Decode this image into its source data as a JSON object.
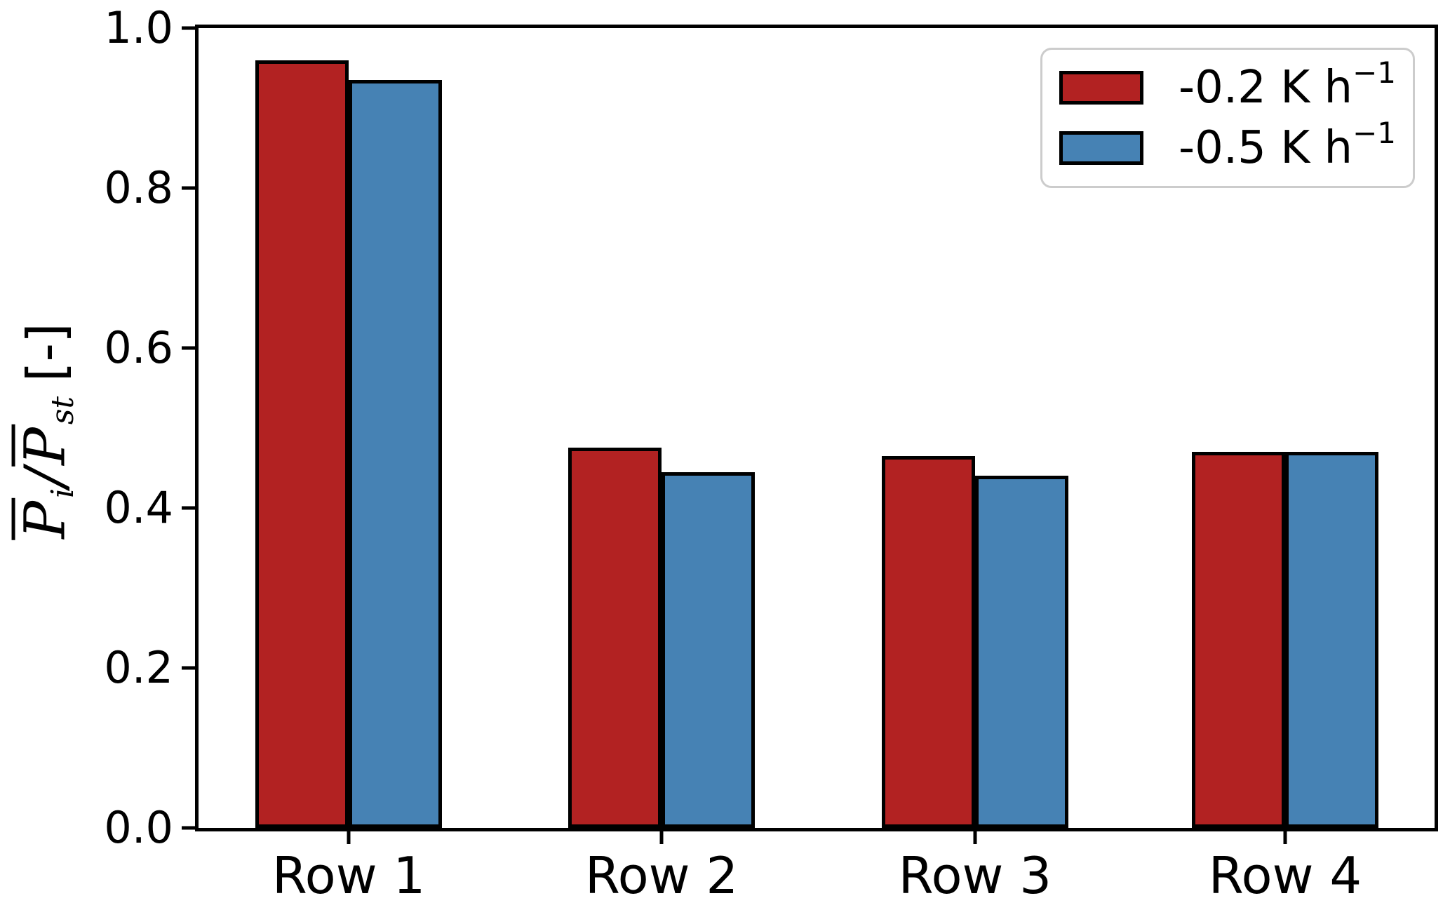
{
  "figure": {
    "background": "#ffffff"
  },
  "y_axis": {
    "label_p1": "P",
    "label_sub1": "i",
    "label_slash": "/",
    "label_p2": "P",
    "label_sub2": "st",
    "label_units": "[-]",
    "label_text": "P̄i/P̄st [-]",
    "tick_labels": [
      "0.0",
      "0.2",
      "0.4",
      "0.6",
      "0.8",
      "1.0"
    ]
  },
  "x_axis": {
    "tick_labels": [
      "Row 1",
      "Row 2",
      "Row 3",
      "Row 4"
    ]
  },
  "legend": {
    "items": [
      {
        "label_main": "-0.2 K h",
        "label_exp": "−1",
        "color": "#b22222"
      },
      {
        "label_main": "-0.5 K h",
        "label_exp": "−1",
        "color": "#4682b4"
      }
    ]
  },
  "chart_data": {
    "type": "bar",
    "categories": [
      "Row 1",
      "Row 2",
      "Row 3",
      "Row 4"
    ],
    "series": [
      {
        "name": "-0.2 K h⁻¹",
        "color": "#b22222",
        "values": [
          0.96,
          0.475,
          0.465,
          0.47
        ]
      },
      {
        "name": "-0.5 K h⁻¹",
        "color": "#4682b4",
        "values": [
          0.935,
          0.445,
          0.44,
          0.47
        ]
      }
    ],
    "title": "",
    "xlabel": "",
    "ylabel": "P̄i/P̄st [-]",
    "ylim": [
      0.0,
      1.0
    ],
    "yticks": [
      0.0,
      0.2,
      0.4,
      0.6,
      0.8,
      1.0
    ],
    "legend_position": "upper right",
    "grid": false,
    "bar_edge_color": "#000000",
    "spines": "full-box"
  }
}
